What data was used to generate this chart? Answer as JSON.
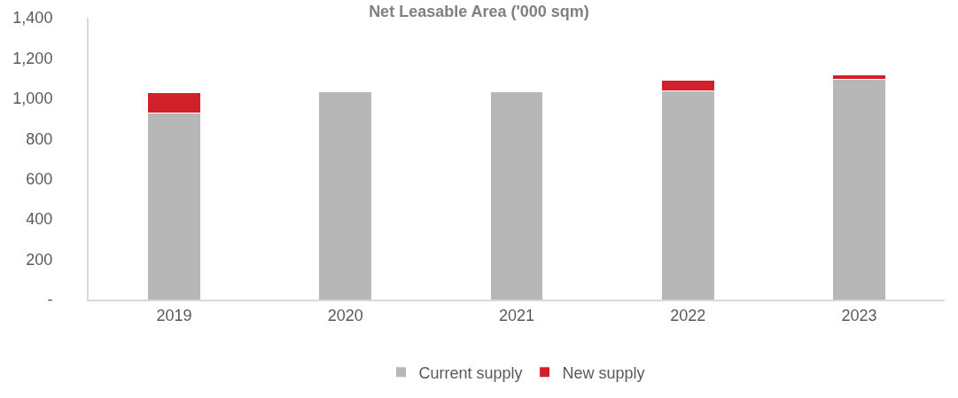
{
  "chart_data": {
    "type": "bar",
    "title": "Net Leasable Area ('000 sqm)",
    "stacked": true,
    "categories": [
      "2019",
      "2020",
      "2021",
      "2022",
      "2023"
    ],
    "series": [
      {
        "name": "Current supply",
        "color": "#b7b7b7",
        "values": [
          925,
          1031,
          1031,
          1036,
          1096
        ]
      },
      {
        "name": "New supply",
        "color": "#d2202a",
        "values": [
          105,
          null,
          null,
          55,
          19
        ]
      }
    ],
    "ylim": [
      0,
      1400
    ],
    "yticks": [
      {
        "value": 0,
        "label": "-"
      },
      {
        "value": 200,
        "label": "200"
      },
      {
        "value": 400,
        "label": "400"
      },
      {
        "value": 600,
        "label": "600"
      },
      {
        "value": 800,
        "label": "800"
      },
      {
        "value": 1000,
        "label": "1,000"
      },
      {
        "value": 1200,
        "label": "1,200"
      },
      {
        "value": 1400,
        "label": "1,400"
      }
    ],
    "legend": "bottom"
  }
}
